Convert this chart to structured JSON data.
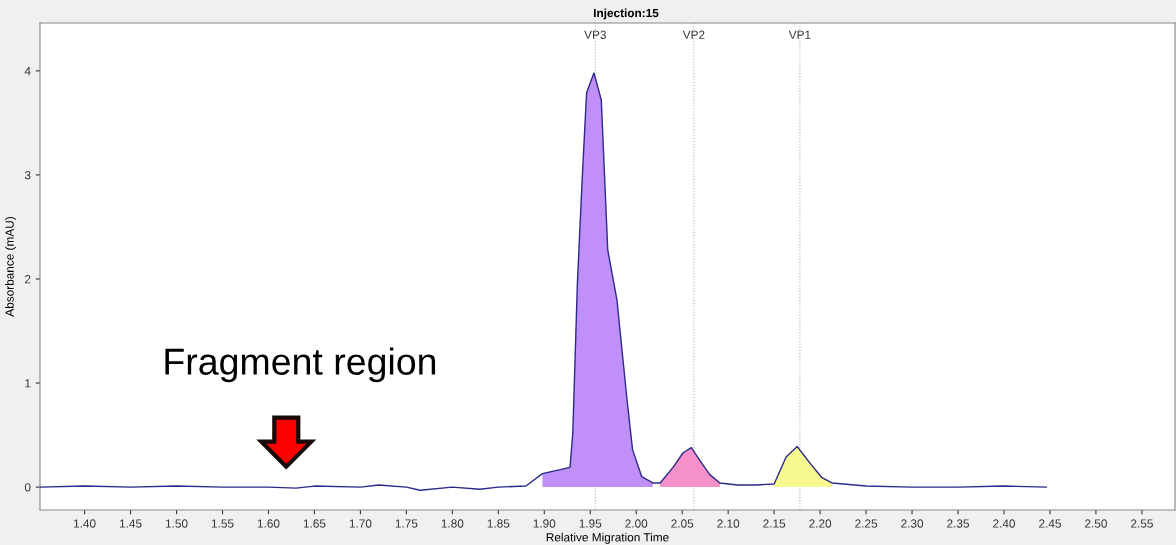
{
  "chart_data": {
    "type": "line",
    "title": "Injection:15",
    "xlabel": "Relative Migration Time",
    "ylabel": "Absorbance (mAU)",
    "xlim": [
      1.3515,
      2.586
    ],
    "ylim": [
      -0.22,
      4.46
    ],
    "xticks": [
      {
        "value": 1.4,
        "label": "1.40"
      },
      {
        "value": 1.45,
        "label": "1.45"
      },
      {
        "value": 1.5,
        "label": "1.50"
      },
      {
        "value": 1.55,
        "label": "1.55"
      },
      {
        "value": 1.6,
        "label": "1.60"
      },
      {
        "value": 1.65,
        "label": "1.65"
      },
      {
        "value": 1.7,
        "label": "1.70"
      },
      {
        "value": 1.75,
        "label": "1.75"
      },
      {
        "value": 1.8,
        "label": "1.80"
      },
      {
        "value": 1.85,
        "label": "1.85"
      },
      {
        "value": 1.9,
        "label": "1.90"
      },
      {
        "value": 1.95,
        "label": "1.95"
      },
      {
        "value": 2.0,
        "label": "2.00"
      },
      {
        "value": 2.05,
        "label": "2.05"
      },
      {
        "value": 2.1,
        "label": "2.10"
      },
      {
        "value": 2.15,
        "label": "2.15"
      },
      {
        "value": 2.2,
        "label": "2.20"
      },
      {
        "value": 2.25,
        "label": "2.25"
      },
      {
        "value": 2.3,
        "label": "2.30"
      },
      {
        "value": 2.35,
        "label": "2.35"
      },
      {
        "value": 2.4,
        "label": "2.40"
      },
      {
        "value": 2.45,
        "label": "2.45"
      },
      {
        "value": 2.5,
        "label": "2.50"
      },
      {
        "value": 2.55,
        "label": "2.55"
      }
    ],
    "yticks": [
      0,
      1,
      2,
      3,
      4
    ],
    "grid": false,
    "legend": false,
    "marker": "none",
    "line_style": "solid",
    "series": [
      {
        "type": "area",
        "color": "#c090f8",
        "x": [
          1.898,
          1.928,
          1.931,
          1.936,
          1.941,
          1.946,
          1.954,
          1.962,
          1.969,
          1.979,
          1.99,
          1.996,
          2.006,
          2.018
        ],
        "values": [
          0.13,
          0.19,
          0.52,
          1.96,
          2.92,
          3.79,
          3.98,
          3.72,
          2.28,
          1.8,
          0.84,
          0.36,
          0.1,
          0.04
        ]
      },
      {
        "type": "area",
        "color": "#f590c8",
        "x": [
          2.026,
          2.04,
          2.051,
          2.06,
          2.069,
          2.08,
          2.091
        ],
        "values": [
          0.04,
          0.19,
          0.33,
          0.38,
          0.26,
          0.12,
          0.04
        ]
      },
      {
        "type": "area",
        "color": "#f8f890",
        "x": [
          2.15,
          2.163,
          2.175,
          2.189,
          2.202,
          2.213
        ],
        "values": [
          0.03,
          0.29,
          0.39,
          0.23,
          0.09,
          0.04
        ]
      },
      {
        "color": "#2a2a8a",
        "x": [
          1.352,
          1.4,
          1.45,
          1.5,
          1.55,
          1.6,
          1.63,
          1.65,
          1.7,
          1.72,
          1.75,
          1.765,
          1.8,
          1.83,
          1.85,
          1.88,
          1.898,
          1.928,
          1.931,
          1.936,
          1.941,
          1.946,
          1.954,
          1.962,
          1.969,
          1.979,
          1.99,
          1.996,
          2.006,
          2.018,
          2.026,
          2.04,
          2.051,
          2.06,
          2.069,
          2.08,
          2.091,
          2.11,
          2.13,
          2.15,
          2.163,
          2.175,
          2.189,
          2.202,
          2.213,
          2.25,
          2.3,
          2.35,
          2.4,
          2.446
        ],
        "values": [
          0.0,
          0.01,
          0.0,
          0.01,
          0.0,
          0.0,
          -0.01,
          0.01,
          0.0,
          0.02,
          0.0,
          -0.03,
          0.0,
          -0.02,
          0.0,
          0.01,
          0.13,
          0.19,
          0.52,
          1.96,
          2.92,
          3.79,
          3.98,
          3.72,
          2.28,
          1.8,
          0.84,
          0.36,
          0.1,
          0.04,
          0.04,
          0.19,
          0.33,
          0.38,
          0.26,
          0.12,
          0.04,
          0.02,
          0.02,
          0.03,
          0.29,
          0.39,
          0.23,
          0.09,
          0.04,
          0.01,
          0.0,
          0.0,
          0.01,
          0.0
        ]
      }
    ],
    "ref_lines": [
      {
        "axis": "x",
        "value": 1.9555,
        "label": "VP3",
        "color": "#b0b0b0",
        "line_style": "dotted"
      },
      {
        "axis": "x",
        "value": 2.0627,
        "label": "VP2",
        "color": "#b0b0b0",
        "line_style": "dotted"
      },
      {
        "axis": "x",
        "value": 2.178,
        "label": "VP1",
        "color": "#b0b0b0",
        "line_style": "dotted"
      }
    ],
    "annotations": [
      "Fragment region"
    ]
  }
}
